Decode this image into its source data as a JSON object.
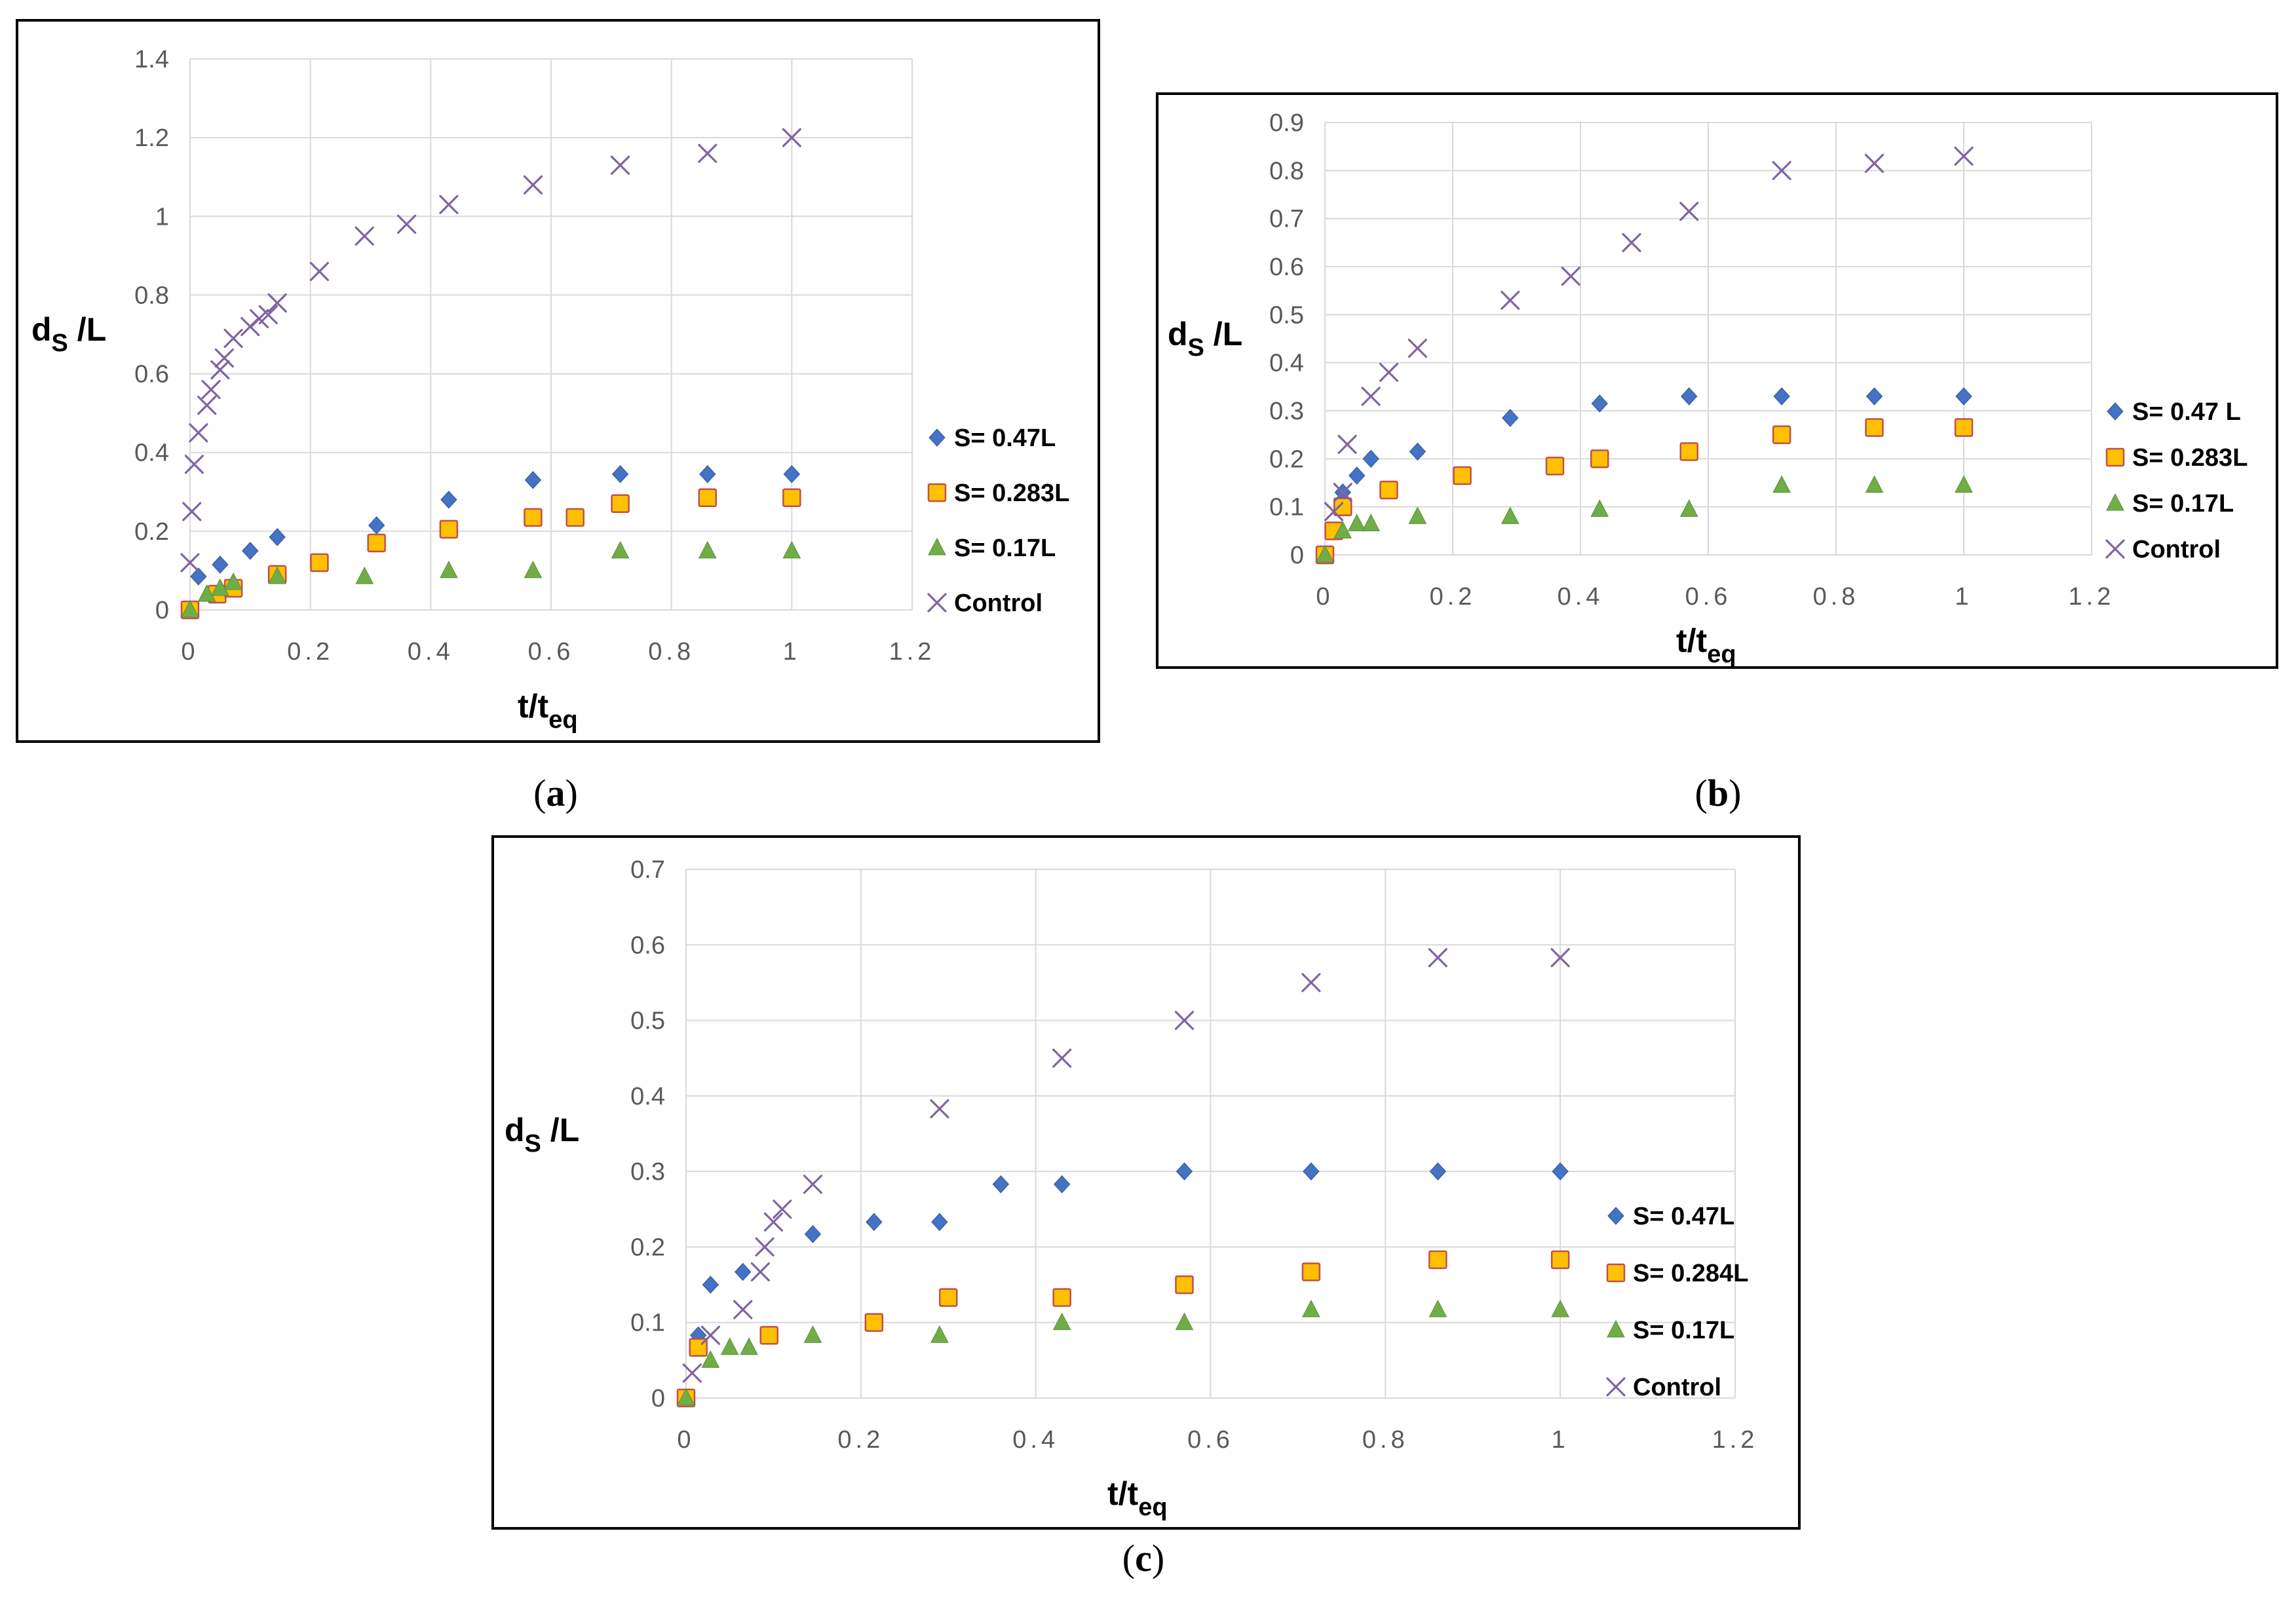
{
  "colors": {
    "diamond": "#4472C4",
    "square_fill": "#FFC000",
    "square_edge": "#C0504D",
    "triangle": "#70AD47",
    "cross": "#8064A2",
    "grid": "#D9D9D9",
    "tick": "#595959"
  },
  "chart_data": [
    {
      "type": "scatter",
      "panel": "a",
      "caption": {
        "open": "(",
        "letter": "a",
        "close": ")"
      },
      "xlabel": {
        "main": "t/t",
        "sub": "eq"
      },
      "ylabel": {
        "main": "d",
        "sub": "S",
        "rest": " /L"
      },
      "xlim": [
        0,
        1.2
      ],
      "ylim": [
        0,
        1.4
      ],
      "xticks": [
        "0",
        "0.2",
        "0.4",
        "0.6",
        "0.8",
        "1",
        "1.2"
      ],
      "yticks": [
        "0",
        "0.2",
        "0.4",
        "0.6",
        "0.8",
        "1",
        "1.2",
        "1.4"
      ],
      "legend_position": "right",
      "series": [
        {
          "name": "S= 0.47L",
          "marker": "diamond",
          "x": [
            0,
            0.014,
            0.05,
            0.1,
            0.145,
            0.31,
            0.43,
            0.57,
            0.715,
            0.86,
            1.0
          ],
          "y": [
            0,
            0.085,
            0.115,
            0.15,
            0.185,
            0.215,
            0.28,
            0.33,
            0.345,
            0.345,
            0.345
          ]
        },
        {
          "name": "S= 0.283L",
          "marker": "square",
          "x": [
            0,
            0.045,
            0.072,
            0.145,
            0.215,
            0.31,
            0.43,
            0.57,
            0.64,
            0.715,
            0.86,
            1.0
          ],
          "y": [
            0,
            0.04,
            0.055,
            0.09,
            0.12,
            0.17,
            0.205,
            0.235,
            0.235,
            0.27,
            0.285,
            0.285
          ]
        },
        {
          "name": "S= 0.17L",
          "marker": "triangle",
          "x": [
            0,
            0.028,
            0.05,
            0.072,
            0.145,
            0.29,
            0.43,
            0.57,
            0.715,
            0.86,
            1.0
          ],
          "y": [
            0,
            0.04,
            0.055,
            0.07,
            0.085,
            0.085,
            0.1,
            0.1,
            0.15,
            0.15,
            0.15
          ]
        },
        {
          "name": "Control",
          "marker": "cross",
          "x": [
            0,
            0.003,
            0.007,
            0.014,
            0.028,
            0.035,
            0.05,
            0.057,
            0.072,
            0.1,
            0.115,
            0.13,
            0.145,
            0.215,
            0.29,
            0.36,
            0.43,
            0.57,
            0.715,
            0.86,
            1.0
          ],
          "y": [
            0.12,
            0.25,
            0.37,
            0.45,
            0.52,
            0.56,
            0.61,
            0.64,
            0.69,
            0.72,
            0.74,
            0.75,
            0.78,
            0.86,
            0.95,
            0.98,
            1.03,
            1.08,
            1.13,
            1.16,
            1.2
          ]
        }
      ]
    },
    {
      "type": "scatter",
      "panel": "b",
      "caption": {
        "open": "(",
        "letter": "b",
        "close": ")"
      },
      "xlabel": {
        "main": "t/t",
        "sub": "eq"
      },
      "ylabel": {
        "main": "d",
        "sub": "S",
        "rest": " /L"
      },
      "xlim": [
        0,
        1.2
      ],
      "ylim": [
        0,
        0.9
      ],
      "xticks": [
        "0",
        "0.2",
        "0.4",
        "0.6",
        "0.8",
        "1",
        "1.2"
      ],
      "yticks": [
        "0",
        "0.1",
        "0.2",
        "0.3",
        "0.4",
        "0.5",
        "0.6",
        "0.7",
        "0.8",
        "0.9"
      ],
      "legend_position": "right",
      "series": [
        {
          "name": "S= 0.47 L",
          "marker": "diamond",
          "x": [
            0,
            0.028,
            0.05,
            0.072,
            0.145,
            0.29,
            0.43,
            0.57,
            0.715,
            0.86,
            1.0
          ],
          "y": [
            0,
            0.13,
            0.165,
            0.2,
            0.215,
            0.285,
            0.315,
            0.33,
            0.33,
            0.33,
            0.33
          ]
        },
        {
          "name": "S= 0.283L",
          "marker": "square",
          "x": [
            0,
            0.014,
            0.028,
            0.1,
            0.215,
            0.36,
            0.43,
            0.57,
            0.715,
            0.86,
            1.0
          ],
          "y": [
            0,
            0.05,
            0.1,
            0.135,
            0.165,
            0.185,
            0.2,
            0.215,
            0.25,
            0.265,
            0.265
          ]
        },
        {
          "name": "S= 0.17L",
          "marker": "triangle",
          "x": [
            0,
            0.028,
            0.05,
            0.072,
            0.145,
            0.29,
            0.43,
            0.57,
            0.715,
            0.86,
            1.0
          ],
          "y": [
            0,
            0.05,
            0.065,
            0.065,
            0.08,
            0.08,
            0.095,
            0.095,
            0.145,
            0.145,
            0.145
          ]
        },
        {
          "name": "Control",
          "marker": "cross",
          "x": [
            0.014,
            0.028,
            0.035,
            0.072,
            0.1,
            0.145,
            0.29,
            0.385,
            0.48,
            0.57,
            0.715,
            0.86,
            1.0
          ],
          "y": [
            0.09,
            0.13,
            0.23,
            0.33,
            0.38,
            0.43,
            0.53,
            0.58,
            0.65,
            0.715,
            0.8,
            0.815,
            0.83
          ]
        }
      ]
    },
    {
      "type": "scatter",
      "panel": "c",
      "caption": {
        "open": "(",
        "letter": "c",
        "close": ")"
      },
      "xlabel": {
        "main": "t/t",
        "sub": "eq"
      },
      "ylabel": {
        "main": "d",
        "sub": "S",
        "rest": " /L"
      },
      "xlim": [
        0,
        1.2
      ],
      "ylim": [
        0,
        0.7
      ],
      "xticks": [
        "0",
        "0.2",
        "0.4",
        "0.6",
        "0.8",
        "1",
        "1.2"
      ],
      "yticks": [
        "0",
        "0.1",
        "0.2",
        "0.3",
        "0.4",
        "0.5",
        "0.6",
        "0.7"
      ],
      "legend_position": "right",
      "series": [
        {
          "name": "S= 0.47L",
          "marker": "diamond",
          "x": [
            0,
            0.014,
            0.028,
            0.065,
            0.145,
            0.215,
            0.29,
            0.36,
            0.43,
            0.57,
            0.715,
            0.86,
            1.0
          ],
          "y": [
            0,
            0.083,
            0.15,
            0.167,
            0.217,
            0.233,
            0.233,
            0.283,
            0.283,
            0.3,
            0.3,
            0.3,
            0.3
          ]
        },
        {
          "name": "S= 0.284L",
          "marker": "square",
          "x": [
            0,
            0.014,
            0.095,
            0.215,
            0.3,
            0.43,
            0.57,
            0.715,
            0.86,
            1.0
          ],
          "y": [
            0,
            0.067,
            0.083,
            0.1,
            0.133,
            0.133,
            0.15,
            0.167,
            0.183,
            0.183
          ]
        },
        {
          "name": "S= 0.17L",
          "marker": "triangle",
          "x": [
            0,
            0.028,
            0.05,
            0.072,
            0.145,
            0.29,
            0.43,
            0.57,
            0.715,
            0.86,
            1.0
          ],
          "y": [
            0,
            0.05,
            0.067,
            0.067,
            0.083,
            0.083,
            0.1,
            0.1,
            0.117,
            0.117,
            0.117
          ]
        },
        {
          "name": "Control",
          "marker": "cross",
          "x": [
            0.007,
            0.028,
            0.065,
            0.085,
            0.09,
            0.1,
            0.11,
            0.145,
            0.29,
            0.43,
            0.57,
            0.715,
            0.86,
            1.0
          ],
          "y": [
            0.033,
            0.083,
            0.117,
            0.167,
            0.2,
            0.233,
            0.25,
            0.283,
            0.383,
            0.45,
            0.5,
            0.55,
            0.583,
            0.583
          ]
        }
      ]
    }
  ]
}
